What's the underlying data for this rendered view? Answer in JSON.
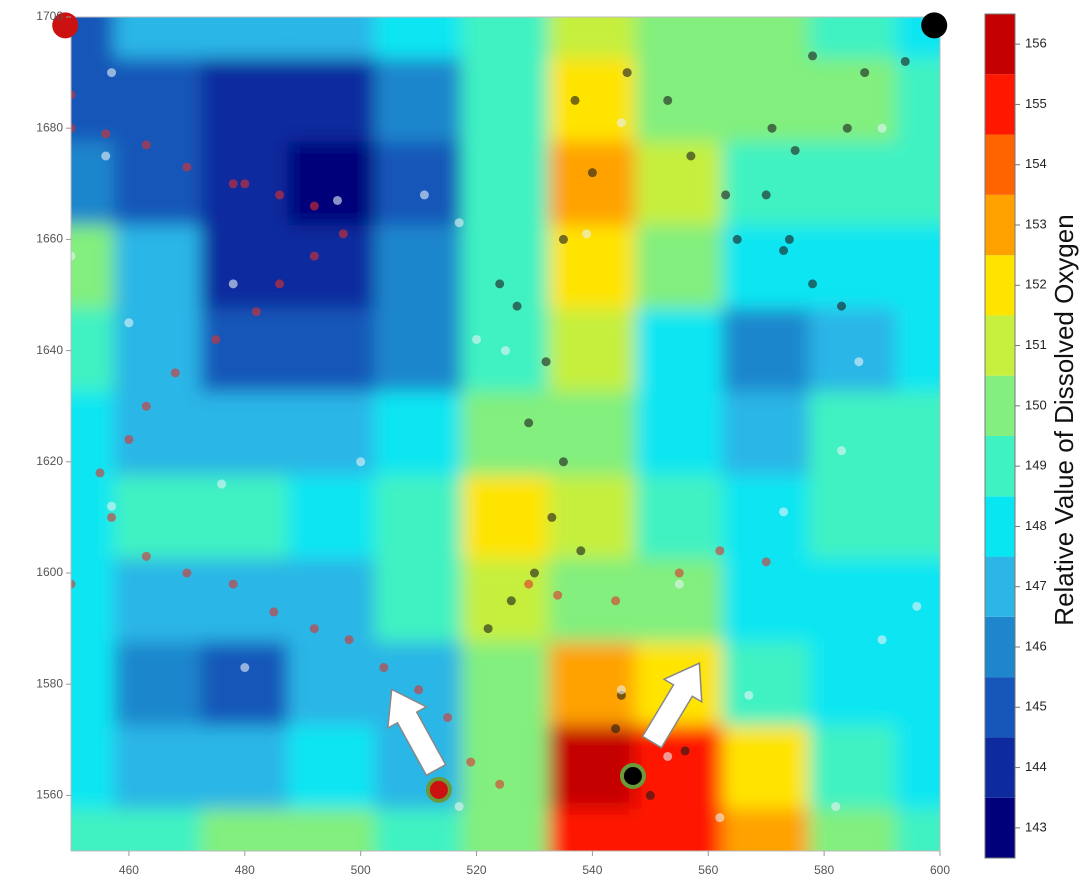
{
  "chart_data": {
    "type": "contour",
    "colorbar_title": "Relative Value of Dissolved Oxygen",
    "x": [
      450,
      465,
      480,
      495,
      510,
      525,
      540,
      555,
      570,
      585,
      600
    ],
    "y": [
      1700,
      1685,
      1670,
      1655,
      1640,
      1625,
      1610,
      1595,
      1580,
      1565,
      1550
    ],
    "z": [
      [
        145,
        147,
        147,
        147,
        147.5,
        149,
        151,
        150,
        149.5,
        149,
        148
      ],
      [
        145,
        145,
        144,
        144,
        146,
        148.5,
        151.5,
        150,
        149.5,
        149.5,
        149
      ],
      [
        146,
        145,
        143.5,
        143,
        144.5,
        148.5,
        152.5,
        150.5,
        149,
        149,
        148.5
      ],
      [
        149.5,
        146.5,
        144,
        144,
        145.5,
        148.5,
        151.5,
        149.5,
        147.5,
        148,
        148
      ],
      [
        149,
        147,
        145,
        145,
        146,
        149,
        150.5,
        147.5,
        145.5,
        146.5,
        147.5
      ],
      [
        147.5,
        147,
        146.5,
        146.5,
        147.5,
        149.5,
        149.5,
        148,
        147,
        149,
        148.5
      ],
      [
        148,
        148.5,
        148.5,
        148,
        149,
        152,
        151,
        149,
        148,
        149,
        148.5
      ],
      [
        148,
        147,
        146.5,
        147,
        148.5,
        151,
        150,
        149.5,
        148,
        147.5,
        148
      ],
      [
        147.5,
        146,
        145,
        146.5,
        147,
        149.5,
        153,
        151.5,
        149,
        148,
        147.5
      ],
      [
        148,
        147,
        147,
        148,
        147,
        149.5,
        155.5,
        154.5,
        151.5,
        149,
        148
      ],
      [
        149,
        148.5,
        149.5,
        150,
        148.5,
        150,
        154.5,
        155,
        152.5,
        149.5,
        148.5
      ]
    ],
    "colors": [
      "#00007a",
      "#0d2b9e",
      "#1656b8",
      "#1e86cc",
      "#2cb6e6",
      "#08e6f2",
      "#3ff2c2",
      "#82ef7e",
      "#c6ef3e",
      "#ffe400",
      "#ffa200",
      "#ff6400",
      "#ff1800",
      "#c40000"
    ],
    "zlim": [
      142.5,
      156.5
    ],
    "zticks": [
      143,
      144,
      145,
      146,
      147,
      148,
      149,
      150,
      151,
      152,
      153,
      154,
      155,
      156
    ],
    "xlim": [
      450,
      600
    ],
    "ylim": [
      1550,
      1700
    ],
    "xticks": [
      460,
      480,
      500,
      520,
      540,
      560,
      580,
      600
    ],
    "yticks": [
      1560,
      1580,
      1600,
      1620,
      1640,
      1660,
      1680,
      1700
    ],
    "series": [
      {
        "color": "#e0302c",
        "x": [
          449,
          450,
          450,
          456,
          463,
          470,
          478,
          480,
          486,
          492,
          497,
          492,
          486,
          482,
          475,
          468,
          463,
          460,
          455,
          457,
          463,
          470,
          478,
          485,
          492,
          498,
          504,
          510,
          515,
          519,
          524,
          529,
          534,
          544,
          555,
          562,
          570,
          450
        ],
        "y": [
          1690,
          1686,
          1680,
          1679,
          1677,
          1673,
          1670,
          1670,
          1668,
          1666,
          1661,
          1657,
          1652,
          1647,
          1642,
          1636,
          1630,
          1624,
          1618,
          1610,
          1603,
          1600,
          1598,
          1593,
          1590,
          1588,
          1583,
          1579,
          1574,
          1566,
          1562,
          1598,
          1596,
          1595,
          1600,
          1604,
          1602,
          1598
        ]
      },
      {
        "color": "#1a1a1a",
        "x": [
          530,
          533,
          535,
          529,
          532,
          527,
          524,
          535,
          540,
          537,
          546,
          553,
          557,
          563,
          565,
          570,
          571,
          578,
          587,
          594,
          584,
          575,
          574,
          578,
          583,
          573,
          545,
          544,
          550,
          556,
          538,
          526,
          522
        ],
        "y": [
          1600,
          1610,
          1620,
          1627,
          1638,
          1648,
          1652,
          1660,
          1672,
          1685,
          1690,
          1685,
          1675,
          1668,
          1660,
          1668,
          1680,
          1693,
          1690,
          1692,
          1680,
          1676,
          1660,
          1652,
          1648,
          1658,
          1578,
          1572,
          1560,
          1568,
          1604,
          1595,
          1590
        ]
      },
      {
        "color": "#e8f2f6",
        "x": [
          457,
          456,
          450,
          460,
          478,
          496,
          511,
          517,
          520,
          525,
          500,
          476,
          457,
          480,
          517,
          545,
          553,
          562,
          582,
          590,
          596,
          583,
          573,
          586,
          590,
          545,
          539,
          555,
          567
        ],
        "y": [
          1690,
          1675,
          1657,
          1645,
          1652,
          1667,
          1668,
          1663,
          1642,
          1640,
          1620,
          1616,
          1612,
          1583,
          1558,
          1579,
          1567,
          1556,
          1558,
          1588,
          1594,
          1622,
          1611,
          1638,
          1680,
          1681,
          1661,
          1598,
          1578
        ]
      }
    ],
    "highlights": [
      {
        "color": "#cc1111",
        "x": [
          449,
          513.5
        ],
        "y": [
          1698.5,
          1561
        ]
      },
      {
        "color": "#000000",
        "x": [
          599,
          547
        ],
        "y": [
          1698.5,
          1563.5
        ]
      }
    ]
  }
}
